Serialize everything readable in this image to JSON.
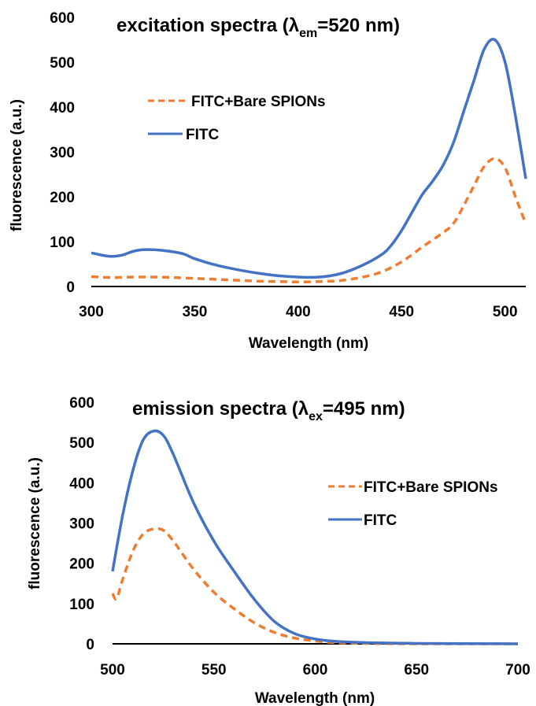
{
  "chart_data": [
    {
      "type": "line",
      "title_main": "excitation spectra (λ",
      "title_sub": "em",
      "title_rest": "=520 nm)",
      "xlabel": "Wavelength (nm)",
      "ylabel": "fluorescence (a.u.)",
      "xlim": [
        300,
        510
      ],
      "ylim": [
        0,
        600
      ],
      "xticks": [
        "300",
        "350",
        "400",
        "450",
        "500"
      ],
      "yticks": [
        "0",
        "100",
        "200",
        "300",
        "400",
        "500",
        "600"
      ],
      "grid": false,
      "legend_position": "upper-left",
      "series": [
        {
          "name": "FITC+Bare SPIONs",
          "style": "dashed",
          "color": "#ED7D31",
          "points": [
            [
              300,
              22
            ],
            [
              310,
              20
            ],
            [
              320,
              21
            ],
            [
              330,
              21
            ],
            [
              340,
              20
            ],
            [
              350,
              18
            ],
            [
              360,
              16
            ],
            [
              370,
              14
            ],
            [
              380,
              12
            ],
            [
              390,
              11
            ],
            [
              400,
              10
            ],
            [
              410,
              11
            ],
            [
              420,
              13
            ],
            [
              430,
              20
            ],
            [
              440,
              32
            ],
            [
              450,
              55
            ],
            [
              460,
              88
            ],
            [
              470,
              120
            ],
            [
              475,
              140
            ],
            [
              480,
              180
            ],
            [
              485,
              225
            ],
            [
              490,
              268
            ],
            [
              495,
              285
            ],
            [
              500,
              265
            ],
            [
              505,
              200
            ],
            [
              510,
              140
            ]
          ]
        },
        {
          "name": "FITC",
          "style": "solid",
          "color": "#4472C4",
          "points": [
            [
              300,
              75
            ],
            [
              305,
              70
            ],
            [
              310,
              67
            ],
            [
              315,
              70
            ],
            [
              320,
              78
            ],
            [
              325,
              82
            ],
            [
              330,
              82
            ],
            [
              335,
              80
            ],
            [
              340,
              77
            ],
            [
              345,
              72
            ],
            [
              350,
              62
            ],
            [
              360,
              48
            ],
            [
              370,
              38
            ],
            [
              380,
              30
            ],
            [
              390,
              24
            ],
            [
              400,
              21
            ],
            [
              410,
              21
            ],
            [
              420,
              28
            ],
            [
              430,
              45
            ],
            [
              440,
              70
            ],
            [
              445,
              92
            ],
            [
              450,
              125
            ],
            [
              455,
              165
            ],
            [
              460,
              205
            ],
            [
              465,
              235
            ],
            [
              470,
              270
            ],
            [
              475,
              320
            ],
            [
              480,
              390
            ],
            [
              485,
              460
            ],
            [
              490,
              530
            ],
            [
              495,
              550
            ],
            [
              500,
              500
            ],
            [
              505,
              380
            ],
            [
              510,
              240
            ]
          ]
        }
      ]
    },
    {
      "type": "line",
      "title_main": "emission spectra (λ",
      "title_sub": "ex",
      "title_rest": "=495 nm)",
      "xlabel": "Wavelength (nm)",
      "ylabel": "fluorescence (a.u.)",
      "xlim": [
        500,
        700
      ],
      "ylim": [
        0,
        600
      ],
      "xticks": [
        "500",
        "550",
        "600",
        "650",
        "700"
      ],
      "yticks": [
        "0",
        "100",
        "200",
        "300",
        "400",
        "500",
        "600"
      ],
      "grid": false,
      "legend_position": "right",
      "series": [
        {
          "name": "FITC+Bare SPIONs",
          "style": "dashed",
          "color": "#ED7D31",
          "points": [
            [
              500,
              125
            ],
            [
              502,
              112
            ],
            [
              505,
              160
            ],
            [
              510,
              230
            ],
            [
              515,
              272
            ],
            [
              520,
              285
            ],
            [
              525,
              282
            ],
            [
              530,
              255
            ],
            [
              540,
              185
            ],
            [
              550,
              128
            ],
            [
              560,
              87
            ],
            [
              570,
              52
            ],
            [
              580,
              28
            ],
            [
              590,
              14
            ],
            [
              600,
              7
            ],
            [
              610,
              3
            ],
            [
              625,
              1
            ],
            [
              650,
              0
            ],
            [
              700,
              0
            ]
          ]
        },
        {
          "name": "FITC",
          "style": "solid",
          "color": "#4472C4",
          "points": [
            [
              500,
              180
            ],
            [
              505,
              320
            ],
            [
              510,
              430
            ],
            [
              515,
              505
            ],
            [
              520,
              528
            ],
            [
              525,
              518
            ],
            [
              530,
              470
            ],
            [
              540,
              350
            ],
            [
              550,
              255
            ],
            [
              560,
              180
            ],
            [
              570,
              110
            ],
            [
              580,
              55
            ],
            [
              590,
              25
            ],
            [
              600,
              12
            ],
            [
              610,
              6
            ],
            [
              625,
              3
            ],
            [
              650,
              1
            ],
            [
              700,
              0
            ]
          ]
        }
      ]
    }
  ]
}
